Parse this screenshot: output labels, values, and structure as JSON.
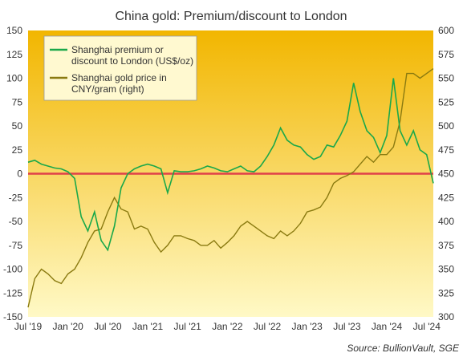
{
  "chart_data": {
    "type": "line",
    "title": "China gold: Premium/discount  to London",
    "source": "Source: BullionVault, SGE",
    "x_ticks": [
      "Jul '19",
      "Jan '20",
      "Jul '20",
      "Jan '21",
      "Jul '21",
      "Jan '22",
      "Jul '22",
      "Jan '23",
      "Jul '23",
      "Jan '24",
      "Jul '24"
    ],
    "x_range": [
      "2019-07",
      "2024-08"
    ],
    "y_left": {
      "ticks": [
        "150",
        "125",
        "100",
        "75",
        "50",
        "25",
        "0",
        "-25",
        "-50",
        "-75",
        "-100",
        "-125",
        "-150"
      ],
      "range": [
        -150,
        150
      ]
    },
    "y_right": {
      "ticks": [
        "600",
        "575",
        "550",
        "525",
        "500",
        "475",
        "450",
        "425",
        "400",
        "375",
        "350",
        "325",
        "300"
      ],
      "range": [
        300,
        600
      ]
    },
    "zero_line_color": "#e0404a",
    "background_gradient": [
      "#f2b600",
      "#fff9c6"
    ],
    "legend_position": "top-left",
    "series": [
      {
        "name": "Shanghai premium or discount to London (US$/oz)",
        "legend_lines": [
          "Shanghai premium or",
          "discount to London (US$/oz)"
        ],
        "axis": "left",
        "color": "#1aa84a",
        "x": [
          "2019-07",
          "2019-08",
          "2019-09",
          "2019-10",
          "2019-11",
          "2019-12",
          "2020-01",
          "2020-02",
          "2020-03",
          "2020-04",
          "2020-05",
          "2020-06",
          "2020-07",
          "2020-08",
          "2020-09",
          "2020-10",
          "2020-11",
          "2020-12",
          "2021-01",
          "2021-02",
          "2021-03",
          "2021-04",
          "2021-05",
          "2021-06",
          "2021-07",
          "2021-08",
          "2021-09",
          "2021-10",
          "2021-11",
          "2021-12",
          "2022-01",
          "2022-02",
          "2022-03",
          "2022-04",
          "2022-05",
          "2022-06",
          "2022-07",
          "2022-08",
          "2022-09",
          "2022-10",
          "2022-11",
          "2022-12",
          "2023-01",
          "2023-02",
          "2023-03",
          "2023-04",
          "2023-05",
          "2023-06",
          "2023-07",
          "2023-08",
          "2023-09",
          "2023-10",
          "2023-11",
          "2023-12",
          "2024-01",
          "2024-02",
          "2024-03",
          "2024-04",
          "2024-05",
          "2024-06",
          "2024-07",
          "2024-08"
        ],
        "values": [
          12,
          14,
          10,
          8,
          6,
          5,
          2,
          -5,
          -45,
          -60,
          -40,
          -70,
          -80,
          -55,
          -15,
          0,
          5,
          8,
          10,
          8,
          5,
          -20,
          3,
          2,
          2,
          3,
          5,
          8,
          6,
          3,
          2,
          5,
          8,
          3,
          2,
          8,
          18,
          30,
          48,
          35,
          30,
          28,
          20,
          15,
          18,
          30,
          28,
          40,
          55,
          95,
          65,
          45,
          38,
          22,
          40,
          100,
          45,
          30,
          45,
          25,
          20,
          -10
        ]
      },
      {
        "name": "Shanghai gold price in CNY/gram (right)",
        "legend_lines": [
          "Shanghai gold price in",
          "CNY/gram (right)"
        ],
        "axis": "right",
        "color": "#8a7a10",
        "x": [
          "2019-07",
          "2019-08",
          "2019-09",
          "2019-10",
          "2019-11",
          "2019-12",
          "2020-01",
          "2020-02",
          "2020-03",
          "2020-04",
          "2020-05",
          "2020-06",
          "2020-07",
          "2020-08",
          "2020-09",
          "2020-10",
          "2020-11",
          "2020-12",
          "2021-01",
          "2021-02",
          "2021-03",
          "2021-04",
          "2021-05",
          "2021-06",
          "2021-07",
          "2021-08",
          "2021-09",
          "2021-10",
          "2021-11",
          "2021-12",
          "2022-01",
          "2022-02",
          "2022-03",
          "2022-04",
          "2022-05",
          "2022-06",
          "2022-07",
          "2022-08",
          "2022-09",
          "2022-10",
          "2022-11",
          "2022-12",
          "2023-01",
          "2023-02",
          "2023-03",
          "2023-04",
          "2023-05",
          "2023-06",
          "2023-07",
          "2023-08",
          "2023-09",
          "2023-10",
          "2023-11",
          "2023-12",
          "2024-01",
          "2024-02",
          "2024-03",
          "2024-04",
          "2024-05",
          "2024-06",
          "2024-07",
          "2024-08"
        ],
        "values": [
          310,
          340,
          350,
          345,
          338,
          335,
          345,
          350,
          362,
          378,
          390,
          392,
          410,
          425,
          413,
          410,
          392,
          395,
          392,
          378,
          368,
          375,
          385,
          385,
          382,
          380,
          375,
          375,
          380,
          372,
          378,
          385,
          395,
          400,
          395,
          390,
          385,
          382,
          390,
          385,
          390,
          398,
          410,
          412,
          415,
          425,
          440,
          445,
          448,
          452,
          460,
          468,
          462,
          470,
          470,
          478,
          505,
          555,
          555,
          550,
          555,
          560
        ]
      }
    ]
  }
}
